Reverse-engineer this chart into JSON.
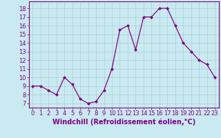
{
  "x": [
    0,
    1,
    2,
    3,
    4,
    5,
    6,
    7,
    8,
    9,
    10,
    11,
    12,
    13,
    14,
    15,
    16,
    17,
    18,
    19,
    20,
    21,
    22,
    23
  ],
  "y": [
    9,
    9,
    8.5,
    8,
    10,
    9.2,
    7.5,
    7,
    7.2,
    8.5,
    11,
    15.5,
    16,
    13.2,
    17,
    17,
    18,
    18,
    16,
    14,
    13,
    12,
    11.5,
    10
  ],
  "line_color": "#800080",
  "marker": "D",
  "marker_size": 2,
  "bg_color": "#c8eaf0",
  "grid_color": "#b0ccd8",
  "xlabel": "Windchill (Refroidissement éolien,°C)",
  "xlabel_color": "#800080",
  "xlabel_fontsize": 7,
  "tick_color": "#800080",
  "tick_fontsize": 6,
  "ytick_labels": [
    "7",
    "8",
    "9",
    "10",
    "11",
    "12",
    "13",
    "14",
    "15",
    "16",
    "17",
    "18"
  ],
  "yticks": [
    7,
    8,
    9,
    10,
    11,
    12,
    13,
    14,
    15,
    16,
    17,
    18
  ],
  "xticks": [
    0,
    1,
    2,
    3,
    4,
    5,
    6,
    7,
    8,
    9,
    10,
    11,
    12,
    13,
    14,
    15,
    16,
    17,
    18,
    19,
    20,
    21,
    22,
    23
  ],
  "ylim": [
    6.5,
    18.8
  ],
  "xlim": [
    -0.5,
    23.5
  ]
}
